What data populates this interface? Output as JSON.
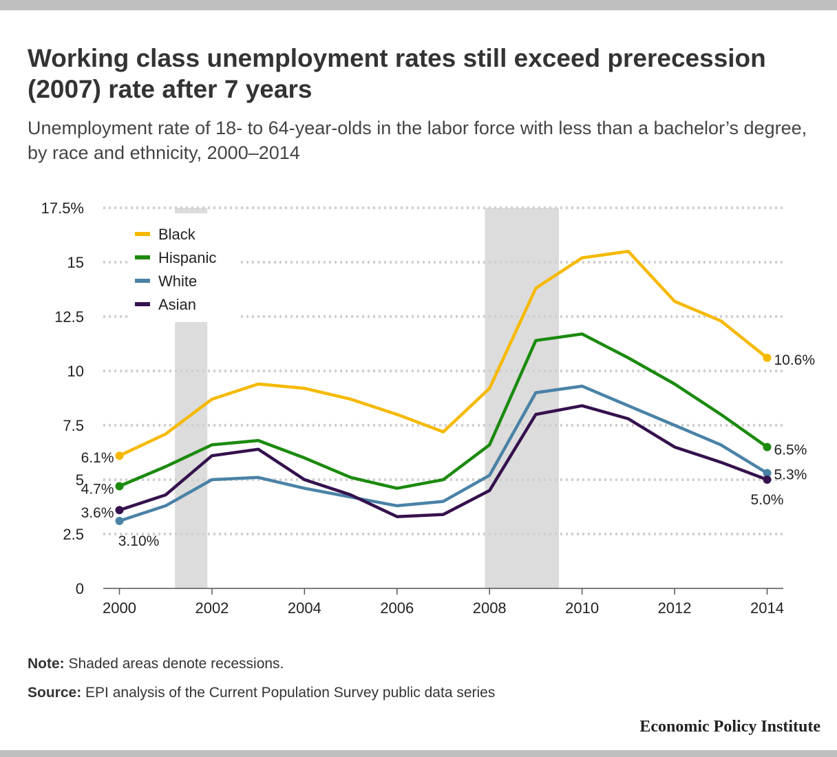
{
  "header": {
    "title": "Working class unemployment rates still exceed prerecession (2007) rate after 7 years",
    "subtitle": "Unemployment rate of 18- to 64-year-olds in the labor force with less than a bachelor’s degree, by race and ethnicity, 2000–2014"
  },
  "chart_data": {
    "type": "line",
    "x": [
      2000,
      2001,
      2002,
      2003,
      2004,
      2005,
      2006,
      2007,
      2008,
      2009,
      2010,
      2011,
      2012,
      2013,
      2014
    ],
    "x_ticks": [
      2000,
      2002,
      2004,
      2006,
      2008,
      2010,
      2012,
      2014
    ],
    "x_tick_labels": [
      "2000",
      "2002",
      "2004",
      "2006",
      "2008",
      "2010",
      "2012",
      "2014"
    ],
    "xlim": [
      1999.65,
      2014.35
    ],
    "ylim": [
      0,
      17.5
    ],
    "y_ticks": [
      0,
      2.5,
      5,
      7.5,
      10,
      12.5,
      15,
      17.5
    ],
    "y_tick_labels": [
      "0",
      "2.5",
      "5",
      "7.5",
      "10",
      "12.5",
      "15",
      "17.5%"
    ],
    "grid": "horizontal dotted",
    "legend": "top-left",
    "recessions": [
      {
        "start": 2001.2,
        "end": 2001.9
      },
      {
        "start": 2007.9,
        "end": 2009.5
      }
    ],
    "series": [
      {
        "name": "Black",
        "color": "#f6b900",
        "values": [
          6.1,
          7.1,
          8.7,
          9.4,
          9.2,
          8.7,
          8.0,
          7.2,
          9.2,
          13.8,
          15.2,
          15.5,
          13.2,
          12.3,
          10.6
        ],
        "start_label": "6.1%",
        "end_label": "10.6%"
      },
      {
        "name": "Hispanic",
        "color": "#1b8a0e",
        "values": [
          4.7,
          5.6,
          6.6,
          6.8,
          6.0,
          5.1,
          4.6,
          5.0,
          6.6,
          11.4,
          11.7,
          10.6,
          9.4,
          8.0,
          6.5
        ],
        "start_label": "4.7%",
        "end_label": "6.5%"
      },
      {
        "name": "White",
        "color": "#4a82a6",
        "values": [
          3.1,
          3.8,
          5.0,
          5.1,
          4.6,
          4.2,
          3.8,
          4.0,
          5.2,
          9.0,
          9.3,
          8.4,
          7.5,
          6.6,
          5.3
        ],
        "start_label": "3.10%",
        "end_label": "5.3%"
      },
      {
        "name": "Asian",
        "color": "#35114d",
        "values": [
          3.6,
          4.3,
          6.1,
          6.4,
          5.0,
          4.3,
          3.3,
          3.4,
          4.5,
          8.0,
          8.4,
          7.8,
          6.5,
          5.8,
          5.0
        ],
        "start_label": "3.6%",
        "end_label": "5.0%"
      }
    ]
  },
  "footer": {
    "note_label": "Note:",
    "note_text": " Shaded areas denote recessions.",
    "source_label": "Source:",
    "source_text": " EPI analysis of the Current Population Survey public data series",
    "brand": "Economic Policy Institute"
  }
}
